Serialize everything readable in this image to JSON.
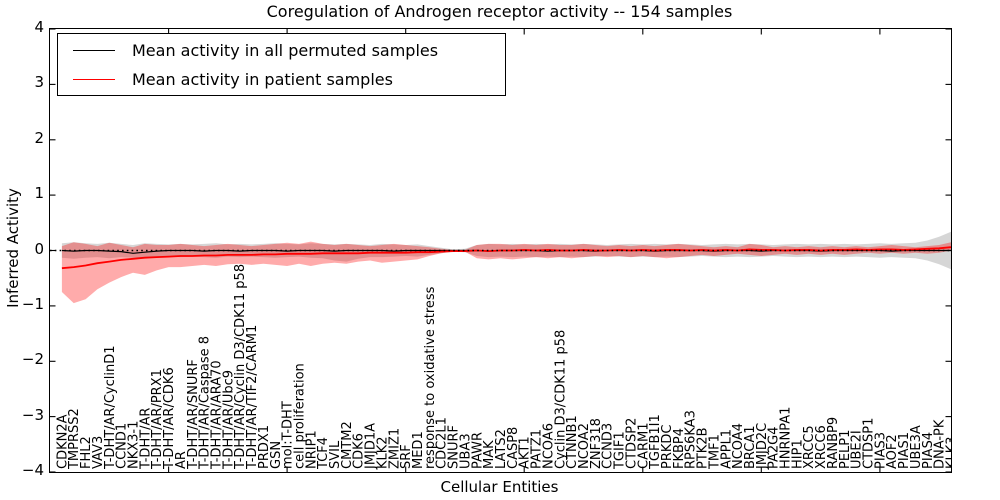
{
  "figure": {
    "title": "Coregulation of Androgen receptor activity -- 154 samples",
    "xlabel": "Cellular Entities",
    "ylabel": "Inferred Activity"
  },
  "legend": {
    "items": [
      {
        "label": "Mean activity in all permuted samples",
        "color": "#000000"
      },
      {
        "label": "Mean activity in patient samples",
        "color": "#ff0000"
      }
    ]
  },
  "chart_data": {
    "type": "line",
    "title": "Coregulation of Androgen receptor activity -- 154 samples",
    "xlabel": "Cellular Entities",
    "ylabel": "Inferred Activity",
    "ylim": [
      -4,
      4
    ],
    "xlim": [
      0,
      76
    ],
    "grid": false,
    "legend_position": "upper left",
    "yticks": [
      4,
      3,
      2,
      1,
      0,
      -1,
      -2,
      -3,
      -4
    ],
    "ytick_labels": [
      "4",
      "3",
      "2",
      "1",
      "0",
      "−1",
      "−2",
      "−3",
      "−4"
    ],
    "xticks": [
      10,
      20,
      30,
      40,
      50,
      60,
      70
    ],
    "zero_line": {
      "y": 0,
      "style": "dotted",
      "color": "#000000"
    },
    "categories": [
      "CDKN2A",
      "TMPRSS2",
      "FHL2",
      "VAV3",
      "T-DHT/AR/CyclinD1",
      "CCND1",
      "NKX3-1",
      "T-DHT/AR",
      "T-DHT/AR/PRX1",
      "T-DHT/AR/CDK6",
      "AR",
      "T-DHT/AR/SNURF",
      "T-DHT/AR/Caspase 8",
      "T-DHT/AR/ARA70",
      "T-DHT/AR/Ubc9",
      "T-DHT/AR/Cyclin D3/CDK11 p58",
      "T-DHT/AR/TIF2/CARM1",
      "PRDX1",
      "GSN",
      "mol:T-DHT",
      "cell proliferation",
      "NRIP1",
      "TCF4",
      "SVIL",
      "CMTM2",
      "CDK6",
      "JMJD1A",
      "KLK2",
      "ZMIZ1",
      "SRF",
      "MED1",
      "response to oxidative stress",
      "CDC2L1",
      "SNURF",
      "UBA3",
      "PAWR",
      "MAK",
      "LATS2",
      "CASP8",
      "AKT1",
      "PATZ1",
      "NCOA6",
      "Cyclin D3/CDK11 p58",
      "CTNNB1",
      "NCOA2",
      "ZNF318",
      "CCND3",
      "TGIF1",
      "CTDSP2",
      "CARM1",
      "TGFB1I1",
      "PRKDC",
      "FKBP4",
      "RPS6KA3",
      "PTK2B",
      "TMF1",
      "APPL1",
      "NCOA4",
      "BRCA1",
      "JMJD2C",
      "PA2G4",
      "HNRNPA1",
      "HIP1",
      "XRCC5",
      "XRCC6",
      "RANBP9",
      "PELP1",
      "UBE2I",
      "CTDSP1",
      "PIAS3",
      "AOF2",
      "PIAS1",
      "UBE3A",
      "PIAS4",
      "DNA-PK",
      "KLK3"
    ],
    "series": [
      {
        "name": "Mean activity in all permuted samples",
        "color": "#000000",
        "values": [
          0.0,
          -0.01,
          0.0,
          0.0,
          -0.01,
          -0.02,
          -0.05,
          -0.03,
          -0.01,
          0.0,
          0.0,
          0.0,
          -0.01,
          0.0,
          0.0,
          -0.01,
          0.0,
          0.0,
          0.0,
          -0.01,
          0.0,
          0.0,
          0.0,
          -0.01,
          0.0,
          0.0,
          0.0,
          0.0,
          -0.01,
          0.0,
          0.0,
          0.0,
          0.0,
          0.0,
          0.0,
          0.0,
          -0.01,
          0.0,
          0.0,
          0.0,
          0.0,
          -0.01,
          0.0,
          0.0,
          0.0,
          -0.01,
          0.0,
          0.0,
          0.0,
          0.0,
          -0.01,
          0.0,
          0.0,
          0.0,
          0.0,
          -0.01,
          0.0,
          0.0,
          0.0,
          -0.01,
          0.0,
          0.0,
          0.0,
          0.0,
          -0.01,
          0.0,
          0.0,
          0.0,
          0.0,
          0.0,
          -0.01,
          0.0,
          0.0,
          0.0,
          0.0,
          0.0
        ]
      },
      {
        "name": "Mean activity in patient samples",
        "color": "#ff0000",
        "values": [
          -0.32,
          -0.3,
          -0.27,
          -0.23,
          -0.2,
          -0.17,
          -0.15,
          -0.13,
          -0.12,
          -0.11,
          -0.1,
          -0.1,
          -0.09,
          -0.09,
          -0.08,
          -0.08,
          -0.08,
          -0.07,
          -0.07,
          -0.06,
          -0.06,
          -0.06,
          -0.05,
          -0.05,
          -0.05,
          -0.05,
          -0.04,
          -0.04,
          -0.04,
          -0.04,
          -0.03,
          -0.03,
          -0.02,
          -0.01,
          -0.01,
          0.0,
          -0.01,
          0.0,
          0.0,
          0.01,
          0.0,
          0.01,
          0.0,
          0.0,
          0.01,
          0.0,
          0.0,
          0.01,
          0.0,
          0.01,
          0.0,
          0.01,
          0.01,
          0.0,
          0.01,
          0.0,
          0.01,
          0.0,
          0.02,
          0.01,
          0.01,
          0.0,
          0.01,
          0.01,
          0.0,
          0.01,
          0.01,
          0.02,
          0.01,
          0.02,
          0.02,
          0.01,
          0.02,
          0.03,
          0.04,
          0.06
        ]
      }
    ],
    "bands": [
      {
        "name": "permuted-std-band",
        "color": "#000000",
        "opacity": 0.16,
        "upper": [
          0.13,
          0.15,
          0.13,
          0.12,
          0.14,
          0.12,
          0.1,
          0.13,
          0.12,
          0.11,
          0.12,
          0.11,
          0.12,
          0.13,
          0.11,
          0.12,
          0.11,
          0.12,
          0.13,
          0.12,
          0.11,
          0.13,
          0.12,
          0.11,
          0.12,
          0.11,
          0.1,
          0.12,
          0.11,
          0.1,
          0.11,
          0.08,
          0.05,
          0.02,
          0.03,
          0.1,
          0.12,
          0.11,
          0.12,
          0.11,
          0.12,
          0.11,
          0.12,
          0.11,
          0.12,
          0.11,
          0.1,
          0.11,
          0.12,
          0.11,
          0.12,
          0.11,
          0.12,
          0.11,
          0.1,
          0.11,
          0.12,
          0.11,
          0.12,
          0.11,
          0.1,
          0.11,
          0.12,
          0.11,
          0.12,
          0.11,
          0.12,
          0.11,
          0.12,
          0.13,
          0.12,
          0.13,
          0.14,
          0.18,
          0.25,
          0.34
        ],
        "lower": [
          -0.13,
          -0.15,
          -0.13,
          -0.12,
          -0.14,
          -0.12,
          -0.13,
          -0.13,
          -0.12,
          -0.11,
          -0.12,
          -0.11,
          -0.12,
          -0.13,
          -0.11,
          -0.12,
          -0.11,
          -0.12,
          -0.13,
          -0.12,
          -0.11,
          -0.13,
          -0.14,
          -0.18,
          -0.2,
          -0.15,
          -0.12,
          -0.12,
          -0.11,
          -0.1,
          -0.11,
          -0.08,
          -0.05,
          -0.02,
          -0.03,
          -0.1,
          -0.12,
          -0.11,
          -0.12,
          -0.11,
          -0.12,
          -0.11,
          -0.12,
          -0.11,
          -0.12,
          -0.11,
          -0.1,
          -0.11,
          -0.12,
          -0.11,
          -0.12,
          -0.11,
          -0.12,
          -0.11,
          -0.1,
          -0.11,
          -0.12,
          -0.11,
          -0.12,
          -0.11,
          -0.1,
          -0.11,
          -0.12,
          -0.11,
          -0.12,
          -0.11,
          -0.12,
          -0.11,
          -0.12,
          -0.13,
          -0.12,
          -0.13,
          -0.14,
          -0.18,
          -0.25,
          -0.34
        ]
      },
      {
        "name": "patient-std-band",
        "color": "#ff0000",
        "opacity": 0.33,
        "upper": [
          0.08,
          0.15,
          0.12,
          0.08,
          0.14,
          0.1,
          0.06,
          0.12,
          0.1,
          0.1,
          0.12,
          0.1,
          0.08,
          0.1,
          0.12,
          0.1,
          0.08,
          0.1,
          0.12,
          0.14,
          0.12,
          0.16,
          0.12,
          0.1,
          0.12,
          0.1,
          0.08,
          0.1,
          0.12,
          0.1,
          0.08,
          0.06,
          0.03,
          0.01,
          0.01,
          0.1,
          0.12,
          0.12,
          0.1,
          0.12,
          0.1,
          0.12,
          0.1,
          0.1,
          0.12,
          0.1,
          0.08,
          0.1,
          0.08,
          0.1,
          0.08,
          0.1,
          0.12,
          0.1,
          0.08,
          0.06,
          0.08,
          0.06,
          0.12,
          0.1,
          0.06,
          0.08,
          0.06,
          0.08,
          0.06,
          0.08,
          0.06,
          0.08,
          0.06,
          0.08,
          0.1,
          0.08,
          0.06,
          0.08,
          0.1,
          0.15
        ],
        "lower": [
          -0.75,
          -0.95,
          -0.88,
          -0.7,
          -0.58,
          -0.48,
          -0.4,
          -0.44,
          -0.36,
          -0.3,
          -0.3,
          -0.28,
          -0.26,
          -0.28,
          -0.25,
          -0.24,
          -0.26,
          -0.24,
          -0.26,
          -0.28,
          -0.24,
          -0.28,
          -0.24,
          -0.22,
          -0.24,
          -0.2,
          -0.18,
          -0.22,
          -0.2,
          -0.18,
          -0.16,
          -0.1,
          -0.05,
          -0.02,
          -0.02,
          -0.14,
          -0.16,
          -0.14,
          -0.16,
          -0.14,
          -0.12,
          -0.14,
          -0.12,
          -0.14,
          -0.12,
          -0.1,
          -0.12,
          -0.1,
          -0.12,
          -0.1,
          -0.12,
          -0.14,
          -0.12,
          -0.1,
          -0.08,
          -0.1,
          -0.08,
          -0.06,
          -0.08,
          -0.1,
          -0.08,
          -0.06,
          -0.08,
          -0.06,
          -0.08,
          -0.06,
          -0.08,
          -0.06,
          -0.04,
          -0.06,
          -0.04,
          -0.06,
          -0.04,
          -0.06,
          -0.04,
          0.0
        ]
      }
    ]
  }
}
